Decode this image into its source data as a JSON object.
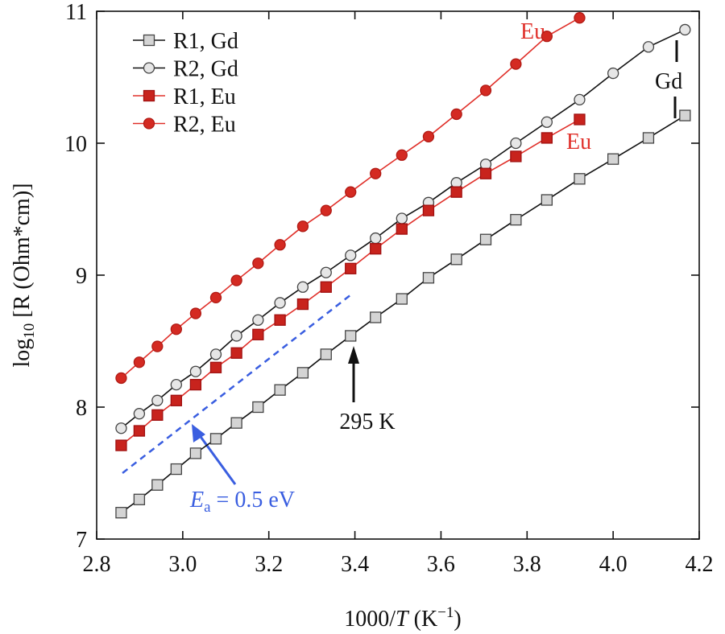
{
  "chart_data": {
    "type": "line",
    "x_label": [
      "1000/",
      "T",
      " (K",
      "−1",
      ")"
    ],
    "y_label": [
      "log",
      "10",
      " [R (Ohm*cm)]"
    ],
    "xlim": [
      2.8,
      4.2
    ],
    "ylim": [
      7,
      11
    ],
    "xticks": [
      {
        "value": 2.8,
        "label": "2.8"
      },
      {
        "value": 3,
        "label": "3.0"
      },
      {
        "value": 3.2,
        "label": "3.2"
      },
      {
        "value": 3.4,
        "label": "3.4"
      },
      {
        "value": 3.6,
        "label": "3.6"
      },
      {
        "value": 3.8,
        "label": "3.8"
      },
      {
        "value": 4,
        "label": "4.0"
      },
      {
        "value": 4.2,
        "label": "4.2"
      }
    ],
    "yticks": [
      7,
      8,
      9,
      10,
      11
    ],
    "grid": false,
    "legend": "top-left",
    "series": [
      {
        "name": "R1, Gd",
        "color": "#111111",
        "fill": "#d4d4d4",
        "marker": "square",
        "x": [
          2.857,
          2.899,
          2.941,
          2.985,
          3.03,
          3.077,
          3.125,
          3.175,
          3.226,
          3.279,
          3.333,
          3.39,
          3.448,
          3.509,
          3.571,
          3.636,
          3.704,
          3.774,
          3.846,
          3.922,
          4.0,
          4.082,
          4.167
        ],
        "values": [
          7.2,
          7.3,
          7.41,
          7.53,
          7.65,
          7.76,
          7.88,
          8.0,
          8.13,
          8.26,
          8.4,
          8.54,
          8.68,
          8.82,
          8.98,
          9.12,
          9.27,
          9.42,
          9.57,
          9.73,
          9.88,
          10.04,
          10.21
        ]
      },
      {
        "name": "R2, Gd",
        "color": "#111111",
        "fill": "#e6e6e6",
        "marker": "circle",
        "x": [
          2.857,
          2.899,
          2.941,
          2.985,
          3.03,
          3.077,
          3.125,
          3.175,
          3.226,
          3.279,
          3.333,
          3.39,
          3.448,
          3.509,
          3.571,
          3.636,
          3.704,
          3.774,
          3.846,
          3.922,
          4.0,
          4.082,
          4.167
        ],
        "values": [
          7.84,
          7.95,
          8.05,
          8.17,
          8.27,
          8.4,
          8.54,
          8.66,
          8.79,
          8.91,
          9.02,
          9.15,
          9.28,
          9.43,
          9.55,
          9.7,
          9.84,
          10.0,
          10.16,
          10.33,
          10.53,
          10.73,
          10.86
        ]
      },
      {
        "name": "R1, Eu",
        "color": "#e0302a",
        "fill": "#c8231d",
        "marker": "square",
        "x": [
          2.857,
          2.899,
          2.941,
          2.985,
          3.03,
          3.077,
          3.125,
          3.175,
          3.226,
          3.279,
          3.333,
          3.39,
          3.448,
          3.509,
          3.571,
          3.636,
          3.704,
          3.774,
          3.846,
          3.922
        ],
        "values": [
          7.71,
          7.82,
          7.94,
          8.05,
          8.17,
          8.3,
          8.41,
          8.55,
          8.66,
          8.78,
          8.91,
          9.05,
          9.2,
          9.35,
          9.49,
          9.63,
          9.77,
          9.9,
          10.04,
          10.18
        ]
      },
      {
        "name": "R2, Eu",
        "color": "#e0302a",
        "fill": "#d42a22",
        "marker": "circle",
        "x": [
          2.857,
          2.899,
          2.941,
          2.985,
          3.03,
          3.077,
          3.125,
          3.175,
          3.226,
          3.279,
          3.333,
          3.39,
          3.448,
          3.509,
          3.571,
          3.636,
          3.704,
          3.774,
          3.846,
          3.922
        ],
        "values": [
          8.22,
          8.34,
          8.46,
          8.59,
          8.71,
          8.83,
          8.96,
          9.09,
          9.23,
          9.37,
          9.49,
          9.63,
          9.77,
          9.91,
          10.05,
          10.22,
          10.4,
          10.6,
          10.81,
          10.95
        ]
      }
    ],
    "guide": {
      "color": "#3a5ee0",
      "x": [
        2.86,
        3.39
      ],
      "values": [
        7.5,
        8.85
      ]
    },
    "annotations": {
      "eu_top": "Eu",
      "eu_mid": "Eu",
      "gd": "Gd",
      "temperature": "295 K",
      "energy": [
        "E",
        "a",
        " = 0.5 eV"
      ]
    }
  }
}
